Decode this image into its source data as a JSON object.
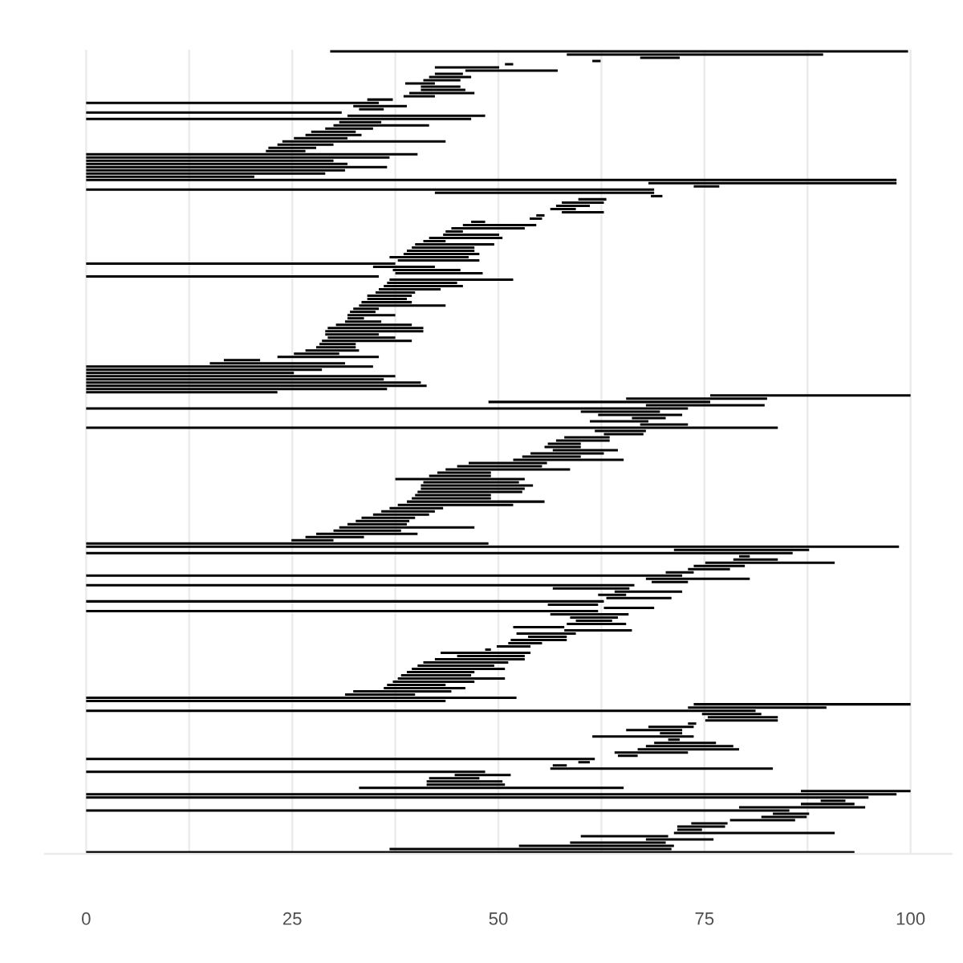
{
  "chart_data": {
    "type": "bar",
    "orientation": "horizontal",
    "color": "#000000",
    "grid": "x",
    "xlim": [
      -5,
      105
    ],
    "xticks": [
      0,
      {
        "value": 12.5,
        "label": null
      },
      25,
      {
        "value": 37.5,
        "label": null
      },
      50,
      {
        "value": 62.5,
        "label": null
      },
      75,
      {
        "value": 87.5,
        "label": null
      },
      100
    ],
    "categories": [
      null,
      null,
      null,
      null,
      null,
      null,
      null,
      null,
      null,
      null,
      null,
      null,
      null,
      null,
      null,
      null,
      null,
      null,
      null,
      null,
      null,
      null,
      null,
      null,
      null,
      null,
      null,
      null,
      null,
      null,
      null,
      null,
      null,
      null,
      null,
      null,
      null,
      null,
      null,
      null,
      null,
      null,
      null,
      null,
      null,
      null,
      null,
      null,
      null,
      null,
      null,
      null,
      null,
      null,
      null,
      null,
      null,
      null,
      null,
      null,
      null,
      null,
      null,
      null,
      null,
      null,
      null,
      null,
      null,
      null,
      null,
      null,
      null,
      null,
      null,
      null,
      null,
      null,
      null,
      null,
      null,
      null,
      null,
      null,
      null,
      null,
      null,
      null,
      null,
      null,
      null,
      null,
      null,
      null,
      null,
      null,
      null,
      null,
      null,
      null,
      null,
      null,
      null,
      null,
      null,
      null,
      null,
      null,
      null,
      null,
      null,
      null,
      null,
      null,
      null,
      null,
      null,
      null,
      null,
      null,
      null,
      null,
      null,
      null,
      null,
      null,
      null,
      null,
      null,
      null,
      null,
      null,
      null,
      null,
      null,
      null,
      null,
      null,
      null,
      null,
      null,
      null,
      null,
      null,
      null,
      null,
      null,
      null,
      null,
      null,
      null,
      null,
      null,
      null,
      null,
      null,
      null,
      null,
      null,
      null,
      null,
      null,
      null,
      null,
      null,
      null,
      null,
      null,
      null,
      null,
      null,
      null,
      null,
      null,
      null,
      null,
      null,
      null,
      null,
      null,
      null,
      null,
      null,
      null,
      null,
      null,
      null,
      null,
      null,
      null,
      null,
      null,
      null,
      null,
      null,
      null,
      null,
      null,
      null,
      null,
      null,
      null,
      null,
      null,
      null,
      null,
      null,
      null,
      null,
      null,
      null,
      null,
      null,
      null,
      null,
      null,
      null,
      null,
      null,
      null,
      null,
      null,
      null,
      null,
      null,
      null,
      null,
      null,
      null,
      null,
      null,
      null,
      null,
      null,
      null,
      null,
      null,
      null,
      null,
      null,
      null,
      null,
      null,
      null,
      null,
      null,
      null,
      null,
      null,
      null
    ],
    "base": [
      29.6,
      58.3,
      67.2,
      61.4,
      50.8,
      42.3,
      46.0,
      42.3,
      41.6,
      40.9,
      38.7,
      40.6,
      40.6,
      39.2,
      38.5,
      34.1,
      0,
      32.4,
      33.1,
      0,
      31.7,
      0,
      30.7,
      30.0,
      29.0,
      27.3,
      26.6,
      25.2,
      23.8,
      23.2,
      22.1,
      21.8,
      0,
      0,
      0,
      0,
      0,
      0,
      0,
      0,
      0,
      68.2,
      73.7,
      0,
      42.3,
      68.5,
      59.7,
      57.7,
      57.0,
      56.3,
      57.7,
      54.6,
      53.8,
      46.7,
      45.7,
      44.3,
      43.6,
      43.3,
      41.6,
      40.9,
      39.9,
      39.5,
      38.9,
      38.5,
      36.8,
      37.8,
      0,
      34.8,
      37.2,
      37.5,
      0,
      36.8,
      36.5,
      36.1,
      35.5,
      35.1,
      34.1,
      34.1,
      33.4,
      33.1,
      32.4,
      32.0,
      31.7,
      31.7,
      31.4,
      30.3,
      29.3,
      29.0,
      29.0,
      29.3,
      28.6,
      28.3,
      27.9,
      26.6,
      25.2,
      23.2,
      16.7,
      15.0,
      0,
      0,
      0,
      0,
      0,
      0,
      0,
      0,
      0,
      75.7,
      65.5,
      48.8,
      67.9,
      0,
      60.0,
      62.1,
      66.2,
      61.1,
      67.2,
      0,
      61.7,
      62.8,
      58.0,
      57.0,
      56.0,
      55.6,
      56.6,
      53.9,
      52.9,
      51.8,
      46.4,
      45.0,
      43.6,
      42.6,
      41.6,
      37.5,
      40.9,
      40.6,
      40.6,
      40.2,
      39.9,
      39.5,
      38.9,
      37.8,
      36.8,
      35.8,
      34.8,
      33.4,
      32.7,
      31.7,
      30.7,
      30.0,
      27.9,
      26.6,
      24.9,
      0,
      0,
      71.3,
      0,
      79.2,
      78.5,
      75.1,
      73.7,
      73.0,
      70.3,
      0,
      67.9,
      68.6,
      0,
      56.6,
      64.1,
      62.1,
      63.1,
      0,
      56.0,
      62.8,
      0,
      56.3,
      58.7,
      59.4,
      58.3,
      51.8,
      58.0,
      52.2,
      53.6,
      51.5,
      51.2,
      49.8,
      48.4,
      43.0,
      45.0,
      42.3,
      40.9,
      40.2,
      39.5,
      38.9,
      38.2,
      37.8,
      37.2,
      36.5,
      36.1,
      32.4,
      31.4,
      0,
      0,
      73.7,
      73.0,
      0,
      74.7,
      75.4,
      75.1,
      73.0,
      68.2,
      65.5,
      69.6,
      61.4,
      70.6,
      68.9,
      67.9,
      66.9,
      64.1,
      64.5,
      0,
      59.7,
      56.6,
      56.3,
      0,
      44.7,
      41.6,
      41.3,
      41.3,
      33.1,
      86.7,
      0,
      0,
      89.1,
      86.7,
      79.2,
      0,
      83.3,
      81.9,
      78.1,
      73.4,
      71.7,
      71.7,
      71.3,
      60.0,
      67.9,
      58.7,
      52.5,
      36.8,
      0
    ],
    "values": [
      70.1,
      31.1,
      4.8,
      1.0,
      1.0,
      7.8,
      11.2,
      3.4,
      5.1,
      4.5,
      3.6,
      4.8,
      5.4,
      7.9,
      3.8,
      3.1,
      35.5,
      6.5,
      3.0,
      31.0,
      16.7,
      46.7,
      5.1,
      11.6,
      5.8,
      5.4,
      6.8,
      6.5,
      19.8,
      6.8,
      5.8,
      4.8,
      40.2,
      36.8,
      30.0,
      31.7,
      36.5,
      31.4,
      29.0,
      20.4,
      98.3,
      30.1,
      3.1,
      68.9,
      26.6,
      1.4,
      3.4,
      5.1,
      4.1,
      3.1,
      5.1,
      1.0,
      1.5,
      1.7,
      8.9,
      8.9,
      2.1,
      6.8,
      8.9,
      2.7,
      9.6,
      7.6,
      8.2,
      9.2,
      9.6,
      9.9,
      37.5,
      7.5,
      8.2,
      10.6,
      35.5,
      15.0,
      8.5,
      9.6,
      7.5,
      4.8,
      5.4,
      4.8,
      6.1,
      10.5,
      3.1,
      3.1,
      5.8,
      2.0,
      4.4,
      9.2,
      11.6,
      11.9,
      6.5,
      8.2,
      10.9,
      4.4,
      4.8,
      6.5,
      5.5,
      12.3,
      4.4,
      16.4,
      34.8,
      28.6,
      25.2,
      37.5,
      36.1,
      40.6,
      41.3,
      36.5,
      23.2,
      24.3,
      17.1,
      26.9,
      14.4,
      73.0,
      9.6,
      10.2,
      4.1,
      7.1,
      5.8,
      83.9,
      6.2,
      4.8,
      5.5,
      6.5,
      4.0,
      4.4,
      7.9,
      8.9,
      7.1,
      13.4,
      9.5,
      10.3,
      15.1,
      6.5,
      7.5,
      15.7,
      11.6,
      13.6,
      12.6,
      12.7,
      9.2,
      9.6,
      16.7,
      14.0,
      6.5,
      6.5,
      6.8,
      6.5,
      6.5,
      7.2,
      16.4,
      8.2,
      12.3,
      7.1,
      5.1,
      48.8,
      98.6,
      16.4,
      85.7,
      1.3,
      5.4,
      15.7,
      6.2,
      5.1,
      3.4,
      72.3,
      12.6,
      4.4,
      66.5,
      9.3,
      8.2,
      3.4,
      7.9,
      62.8,
      6.1,
      6.1,
      62.1,
      9.5,
      5.8,
      4.4,
      7.2,
      6.2,
      8.2,
      7.2,
      4.7,
      6.8,
      4.1,
      4.1,
      0.7,
      10.9,
      8.2,
      10.9,
      10.3,
      9.3,
      11.3,
      8.2,
      8.5,
      13.0,
      9.9,
      7.1,
      9.9,
      11.9,
      8.5,
      52.2,
      43.6,
      26.3,
      16.8,
      81.2,
      7.2,
      8.5,
      8.8,
      1.0,
      5.5,
      6.8,
      2.7,
      12.3,
      1.4,
      7.5,
      10.6,
      12.3,
      8.9,
      2.4,
      61.7,
      1.4,
      1.7,
      27.0,
      48.4,
      6.8,
      6.1,
      9.2,
      9.5,
      32.1,
      13.3,
      98.3,
      94.9,
      3.0,
      6.5,
      15.3,
      85.3,
      4.4,
      5.5,
      7.9,
      4.4,
      5.8,
      3.0,
      19.5,
      10.6,
      8.2,
      11.6,
      18.8,
      34.2,
      93.2
    ]
  }
}
